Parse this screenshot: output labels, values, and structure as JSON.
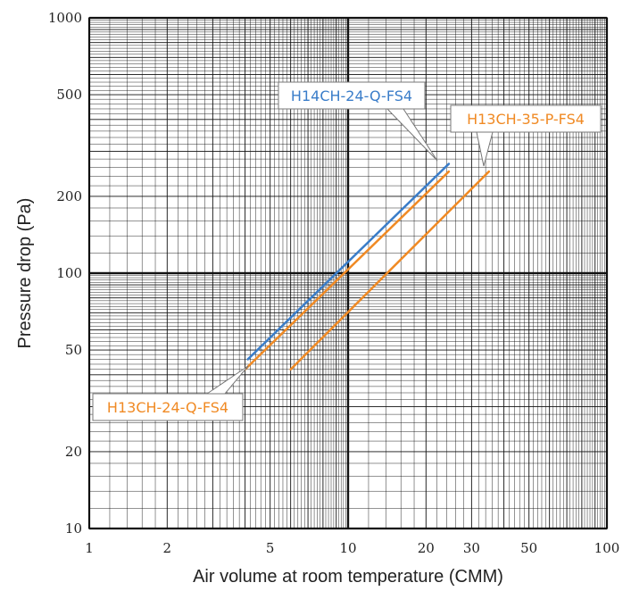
{
  "chart_data": {
    "type": "line",
    "x_scale": "log",
    "y_scale": "log",
    "xlim": [
      1,
      100
    ],
    "ylim": [
      10,
      1000
    ],
    "xlabel": "Air volume at room temperature (CMM)",
    "ylabel": "Pressure drop (Pa)",
    "x_ticks": [
      1,
      2,
      5,
      10,
      20,
      30,
      50,
      100
    ],
    "y_ticks": [
      10,
      20,
      50,
      100,
      200,
      500,
      1000
    ],
    "grid": true,
    "series": [
      {
        "name": "H14CH-24-Q-FS4",
        "color": "#3a7dc9",
        "x": [
          4.1,
          24.5
        ],
        "y": [
          46,
          268
        ]
      },
      {
        "name": "H13CH-24-Q-FS4",
        "color": "#f08a24",
        "x": [
          4.0,
          24.5
        ],
        "y": [
          42,
          250
        ]
      },
      {
        "name": "H13CH-35-P-FS4",
        "color": "#f08a24",
        "x": [
          6.0,
          35.0
        ],
        "y": [
          42,
          250
        ]
      }
    ],
    "annotations": [
      {
        "text": "H14CH-24-Q-FS4",
        "color": "#3a7dc9",
        "points_to_series": 0
      },
      {
        "text": "H13CH-35-P-FS4",
        "color": "#f08a24",
        "points_to_series": 2
      },
      {
        "text": "H13CH-24-Q-FS4",
        "color": "#f08a24",
        "points_to_series": 1
      }
    ]
  }
}
